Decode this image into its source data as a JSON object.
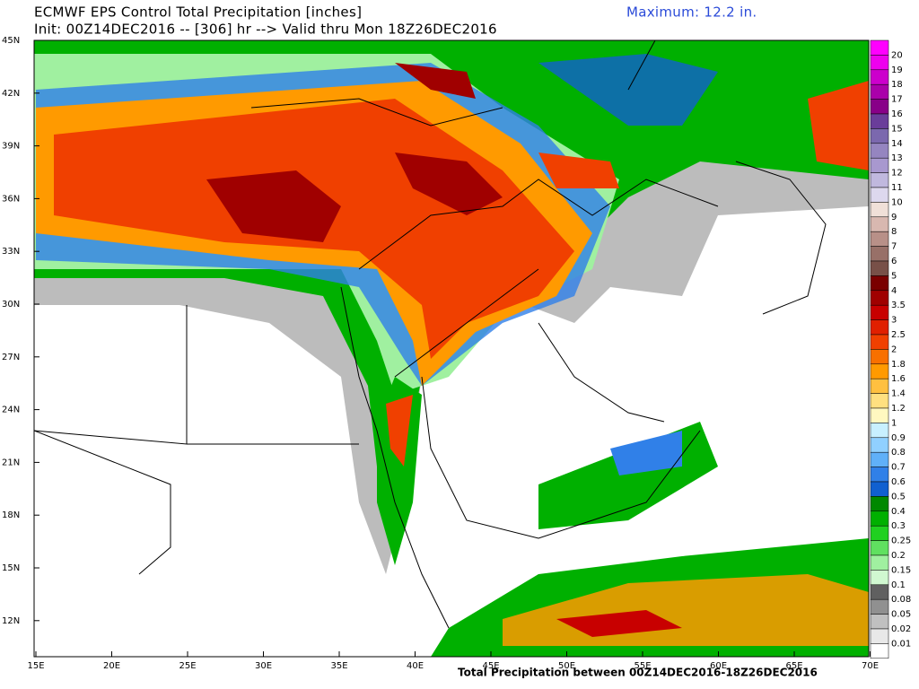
{
  "header": {
    "title": "ECMWF EPS Control Total Precipitation [inches]",
    "init": "Init: 00Z14DEC2016 -- [306] hr --> Valid thru Mon 18Z26DEC2016",
    "maximum": "Maximum: 12.2 in."
  },
  "footer": "Total Precipitation between 00Z14DEC2016-18Z26DEC2016",
  "lat_labels": [
    "45N",
    "42N",
    "39N",
    "36N",
    "33N",
    "30N",
    "27N",
    "24N",
    "21N",
    "18N",
    "15N",
    "12N"
  ],
  "lon_labels": [
    "15E",
    "20E",
    "25E",
    "30E",
    "35E",
    "40E",
    "45E",
    "50E",
    "55E",
    "60E",
    "65E",
    "70E"
  ],
  "colorbar": [
    {
      "label": "20",
      "color": "#ff00ff"
    },
    {
      "label": "19",
      "color": "#ee00ee"
    },
    {
      "label": "18",
      "color": "#cc00cc"
    },
    {
      "label": "17",
      "color": "#aa00aa"
    },
    {
      "label": "16",
      "color": "#880088"
    },
    {
      "label": "15",
      "color": "#6a3d9a"
    },
    {
      "label": "14",
      "color": "#7b68ae"
    },
    {
      "label": "13",
      "color": "#9585c0"
    },
    {
      "label": "12",
      "color": "#a898cf"
    },
    {
      "label": "11",
      "color": "#c0b8de"
    },
    {
      "label": "10",
      "color": "#ddd8ee"
    },
    {
      "label": "9",
      "color": "#f0e0d8"
    },
    {
      "label": "8",
      "color": "#d8b8b0"
    },
    {
      "label": "7",
      "color": "#b89088"
    },
    {
      "label": "6",
      "color": "#987068"
    },
    {
      "label": "5",
      "color": "#785048"
    },
    {
      "label": "4",
      "color": "#7a0000"
    },
    {
      "label": "3.5",
      "color": "#a00000"
    },
    {
      "label": "3",
      "color": "#c80000"
    },
    {
      "label": "2.5",
      "color": "#e02000"
    },
    {
      "label": "2",
      "color": "#f04000"
    },
    {
      "label": "1.8",
      "color": "#f87000"
    },
    {
      "label": "1.6",
      "color": "#ff9a00"
    },
    {
      "label": "1.4",
      "color": "#ffc040"
    },
    {
      "label": "1.2",
      "color": "#ffe080"
    },
    {
      "label": "1",
      "color": "#fff8c0"
    },
    {
      "label": "0.9",
      "color": "#c8f0ff"
    },
    {
      "label": "0.8",
      "color": "#90d0ff"
    },
    {
      "label": "0.7",
      "color": "#60b0f8"
    },
    {
      "label": "0.6",
      "color": "#3080e8"
    },
    {
      "label": "0.5",
      "color": "#1060d0"
    },
    {
      "label": "0.4",
      "color": "#008800"
    },
    {
      "label": "0.3",
      "color": "#00b000"
    },
    {
      "label": "0.25",
      "color": "#20d020"
    },
    {
      "label": "0.2",
      "color": "#60e060"
    },
    {
      "label": "0.15",
      "color": "#a0f0a0"
    },
    {
      "label": "0.1",
      "color": "#d0f8d0"
    },
    {
      "label": "0.08",
      "color": "#606060"
    },
    {
      "label": "0.05",
      "color": "#909090"
    },
    {
      "label": "0.02",
      "color": "#c0c0c0"
    },
    {
      "label": "0.01",
      "color": "#e8e8e8"
    }
  ]
}
